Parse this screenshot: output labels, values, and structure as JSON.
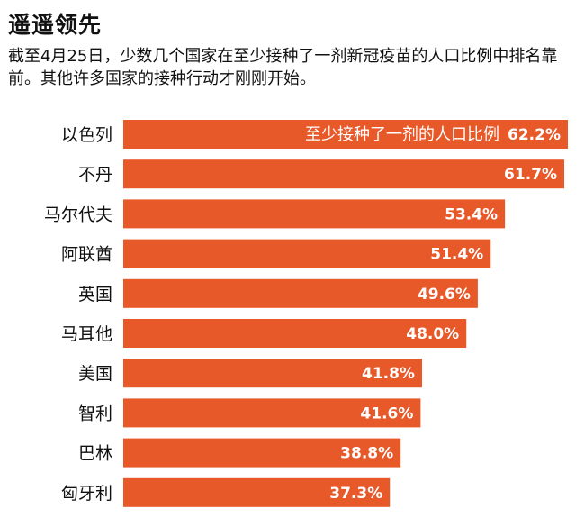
{
  "header": {
    "title": "遥遥领先",
    "subtitle": "截至4月25日，少数几个国家在至少接种了一剂新冠疫苗的人口比例中排名靠前。其他许多国家的接种行动才刚刚开始。"
  },
  "chart_data": {
    "type": "bar",
    "orientation": "horizontal",
    "categories": [
      "以色列",
      "不丹",
      "马尔代夫",
      "阿联酋",
      "英国",
      "马耳他",
      "美国",
      "智利",
      "巴林",
      "匈牙利"
    ],
    "series": [
      {
        "name": "至少接种了一剂的人口比例",
        "values": [
          62.2,
          61.7,
          53.4,
          51.4,
          49.6,
          48.0,
          41.8,
          41.6,
          38.8,
          37.3
        ],
        "labels": [
          "62.2%",
          "61.7%",
          "53.4%",
          "51.4%",
          "49.6%",
          "48.0%",
          "41.8%",
          "41.6%",
          "38.8%",
          "37.3%"
        ]
      }
    ],
    "xlim": [
      0,
      62.2
    ],
    "grid": false,
    "legend_placement": "inside top bar",
    "bar_color": "#e8592a"
  }
}
